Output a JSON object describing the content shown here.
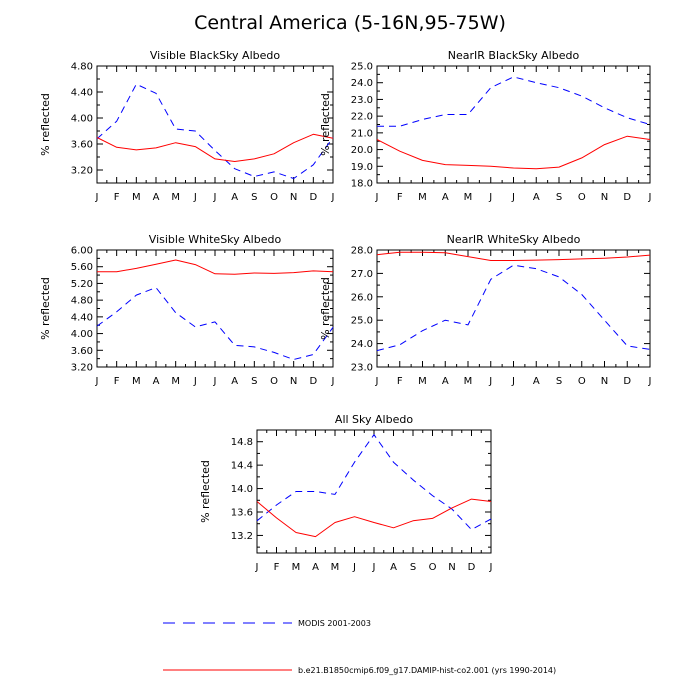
{
  "title": "Central America (5-16N,95-75W)",
  "legend": {
    "modis": "MODIS 2001-2003",
    "model": "b.e21.B1850cmip6.f09_g17.DAMIP-hist-co2.001 (yrs 1990-2014)"
  },
  "colors": {
    "modis": "#0000ff",
    "model": "#ff0000"
  },
  "chart_data": [
    {
      "type": "line",
      "title": "Visible BlackSky Albedo",
      "ylabel": "% reflected",
      "categories": [
        "J",
        "F",
        "M",
        "A",
        "M",
        "J",
        "J",
        "A",
        "S",
        "O",
        "N",
        "D",
        "J"
      ],
      "ylim": [
        3.0,
        4.8
      ],
      "yticks": [
        "3.20",
        "3.60",
        "4.00",
        "4.40",
        "4.80"
      ],
      "series": [
        {
          "name": "MODIS 2001-2003",
          "style": "dashed",
          "color": "#0000ff",
          "values": [
            3.68,
            3.95,
            4.52,
            4.38,
            3.83,
            3.8,
            3.5,
            3.22,
            3.1,
            3.17,
            3.07,
            3.28,
            3.7
          ]
        },
        {
          "name": "b.e21.B1850cmip6.f09_g17.DAMIP-hist-co2.001 (yrs 1990-2014)",
          "style": "solid",
          "color": "#ff0000",
          "values": [
            3.7,
            3.55,
            3.51,
            3.54,
            3.62,
            3.56,
            3.37,
            3.33,
            3.37,
            3.45,
            3.62,
            3.75,
            3.69
          ]
        }
      ]
    },
    {
      "type": "line",
      "title": "NearIR BlackSky Albedo",
      "ylabel": "% reflected",
      "categories": [
        "J",
        "F",
        "M",
        "A",
        "M",
        "J",
        "J",
        "A",
        "S",
        "O",
        "N",
        "D",
        "J"
      ],
      "ylim": [
        18.0,
        25.0
      ],
      "yticks": [
        "18.0",
        "19.0",
        "20.0",
        "21.0",
        "22.0",
        "23.0",
        "24.0",
        "25.0"
      ],
      "series": [
        {
          "name": "MODIS 2001-2003",
          "style": "dashed",
          "color": "#0000ff",
          "values": [
            21.4,
            21.4,
            21.8,
            22.1,
            22.1,
            23.7,
            24.35,
            24.0,
            23.7,
            23.2,
            22.5,
            21.9,
            21.5
          ]
        },
        {
          "name": "b.e21.B1850cmip6.f09_g17.DAMIP-hist-co2.001 (yrs 1990-2014)",
          "style": "solid",
          "color": "#ff0000",
          "values": [
            20.6,
            19.9,
            19.35,
            19.1,
            19.05,
            19.0,
            18.9,
            18.85,
            18.95,
            19.5,
            20.3,
            20.8,
            20.6
          ]
        }
      ]
    },
    {
      "type": "line",
      "title": "Visible WhiteSky Albedo",
      "ylabel": "% reflected",
      "categories": [
        "J",
        "F",
        "M",
        "A",
        "M",
        "J",
        "J",
        "A",
        "S",
        "O",
        "N",
        "D",
        "J"
      ],
      "ylim": [
        3.2,
        6.0
      ],
      "yticks": [
        "3.20",
        "3.60",
        "4.00",
        "4.40",
        "4.80",
        "5.20",
        "5.60",
        "6.00"
      ],
      "series": [
        {
          "name": "MODIS 2001-2003",
          "style": "dashed",
          "color": "#0000ff",
          "values": [
            4.18,
            4.52,
            4.92,
            5.1,
            4.5,
            4.16,
            4.28,
            3.72,
            3.68,
            3.55,
            3.38,
            3.5,
            4.15
          ]
        },
        {
          "name": "b.e21.B1850cmip6.f09_g17.DAMIP-hist-co2.001 (yrs 1990-2014)",
          "style": "solid",
          "color": "#ff0000",
          "values": [
            5.48,
            5.48,
            5.56,
            5.66,
            5.76,
            5.65,
            5.43,
            5.42,
            5.45,
            5.44,
            5.46,
            5.5,
            5.48
          ]
        }
      ]
    },
    {
      "type": "line",
      "title": "NearIR WhiteSky Albedo",
      "ylabel": "% reflected",
      "categories": [
        "J",
        "F",
        "M",
        "A",
        "M",
        "J",
        "J",
        "A",
        "S",
        "O",
        "N",
        "D",
        "J"
      ],
      "ylim": [
        23.0,
        28.0
      ],
      "yticks": [
        "23.0",
        "24.0",
        "25.0",
        "26.0",
        "27.0",
        "28.0"
      ],
      "series": [
        {
          "name": "MODIS 2001-2003",
          "style": "dashed",
          "color": "#0000ff",
          "values": [
            23.7,
            23.95,
            24.55,
            25.0,
            24.8,
            26.75,
            27.35,
            27.2,
            26.85,
            26.1,
            25.0,
            23.9,
            23.75
          ]
        },
        {
          "name": "b.e21.B1850cmip6.f09_g17.DAMIP-hist-co2.001 (yrs 1990-2014)",
          "style": "solid",
          "color": "#ff0000",
          "values": [
            27.8,
            27.9,
            27.9,
            27.88,
            27.72,
            27.55,
            27.55,
            27.57,
            27.59,
            27.62,
            27.65,
            27.7,
            27.78
          ]
        }
      ]
    },
    {
      "type": "line",
      "title": "All Sky Albedo",
      "ylabel": "% reflected",
      "categories": [
        "J",
        "F",
        "M",
        "A",
        "M",
        "J",
        "J",
        "A",
        "S",
        "O",
        "N",
        "D",
        "J"
      ],
      "ylim": [
        12.9,
        15.0
      ],
      "yticks": [
        "13.2",
        "13.6",
        "14.0",
        "14.4",
        "14.8"
      ],
      "series": [
        {
          "name": "MODIS 2001-2003",
          "style": "dashed",
          "color": "#0000ff",
          "values": [
            13.45,
            13.72,
            13.95,
            13.95,
            13.9,
            14.45,
            14.92,
            14.45,
            14.15,
            13.88,
            13.65,
            13.3,
            13.48
          ]
        },
        {
          "name": "b.e21.B1850cmip6.f09_g17.DAMIP-hist-co2.001 (yrs 1990-2014)",
          "style": "solid",
          "color": "#ff0000",
          "values": [
            13.78,
            13.5,
            13.25,
            13.18,
            13.42,
            13.52,
            13.42,
            13.33,
            13.45,
            13.49,
            13.67,
            13.82,
            13.78
          ]
        }
      ]
    }
  ]
}
